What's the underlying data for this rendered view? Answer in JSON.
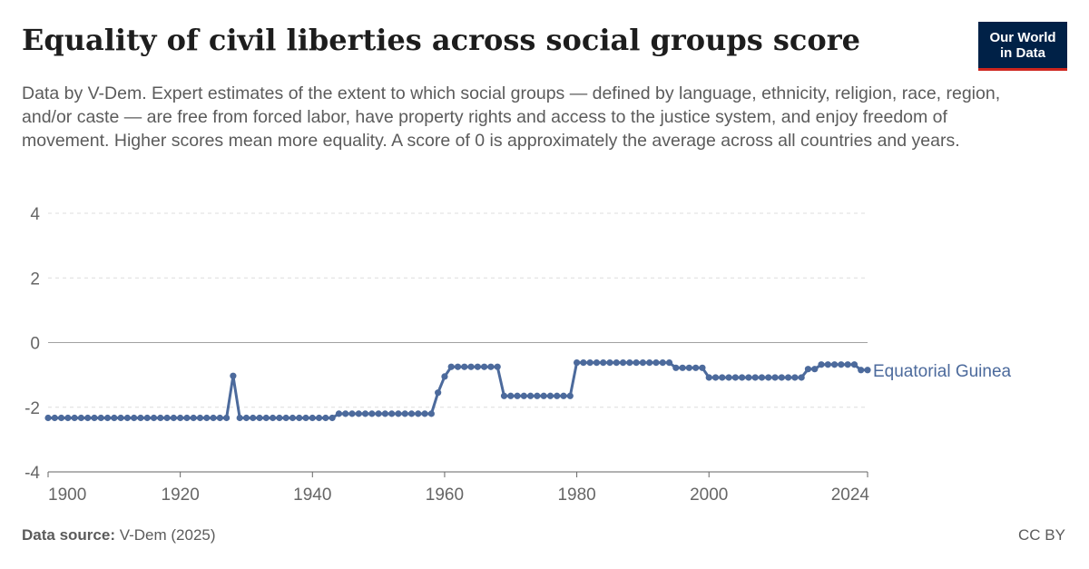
{
  "header": {
    "title": "Equality of civil liberties across social groups score",
    "subtitle": "Data by V-Dem. Expert estimates of the extent to which social groups — defined by language, ethnicity, religion, race, region, and/or caste — are free from forced labor, have property rights and access to the justice system, and enjoy freedom of movement. Higher scores mean more equality. A score of 0 is approximately the average across all countries and years."
  },
  "logo": {
    "line1": "Our World",
    "line2": "in Data",
    "background": "#002147",
    "accent": "#ce261e"
  },
  "footer": {
    "source_label": "Data source:",
    "source_value": "V-Dem (2025)",
    "license": "CC BY"
  },
  "chart_data": {
    "type": "line",
    "title": "Equality of civil liberties across social groups score",
    "xlabel": "",
    "ylabel": "",
    "xlim": [
      1900,
      2024
    ],
    "ylim": [
      -4,
      4
    ],
    "x_ticks": [
      1900,
      1920,
      1940,
      1960,
      1980,
      2000,
      2024
    ],
    "y_ticks": [
      4,
      2,
      0,
      -2,
      -4
    ],
    "y_tick_labels": [
      "4",
      "2",
      "0",
      "-2",
      "-4"
    ],
    "grid": "horizontal dashed",
    "legend": "inline label at line end",
    "series": [
      {
        "name": "Equatorial Guinea",
        "color": "#4c6a9c",
        "points": [
          [
            1900,
            -2.33
          ],
          [
            1901,
            -2.33
          ],
          [
            1902,
            -2.33
          ],
          [
            1903,
            -2.33
          ],
          [
            1904,
            -2.33
          ],
          [
            1905,
            -2.33
          ],
          [
            1906,
            -2.33
          ],
          [
            1907,
            -2.33
          ],
          [
            1908,
            -2.33
          ],
          [
            1909,
            -2.33
          ],
          [
            1910,
            -2.33
          ],
          [
            1911,
            -2.33
          ],
          [
            1912,
            -2.33
          ],
          [
            1913,
            -2.33
          ],
          [
            1914,
            -2.33
          ],
          [
            1915,
            -2.33
          ],
          [
            1916,
            -2.33
          ],
          [
            1917,
            -2.33
          ],
          [
            1918,
            -2.33
          ],
          [
            1919,
            -2.33
          ],
          [
            1920,
            -2.33
          ],
          [
            1921,
            -2.33
          ],
          [
            1922,
            -2.33
          ],
          [
            1923,
            -2.33
          ],
          [
            1924,
            -2.33
          ],
          [
            1925,
            -2.33
          ],
          [
            1926,
            -2.33
          ],
          [
            1927,
            -2.33
          ],
          [
            1928,
            -1.03
          ],
          [
            1929,
            -2.33
          ],
          [
            1930,
            -2.33
          ],
          [
            1931,
            -2.33
          ],
          [
            1932,
            -2.33
          ],
          [
            1933,
            -2.33
          ],
          [
            1934,
            -2.33
          ],
          [
            1935,
            -2.33
          ],
          [
            1936,
            -2.33
          ],
          [
            1937,
            -2.33
          ],
          [
            1938,
            -2.33
          ],
          [
            1939,
            -2.33
          ],
          [
            1940,
            -2.33
          ],
          [
            1941,
            -2.33
          ],
          [
            1942,
            -2.33
          ],
          [
            1943,
            -2.33
          ],
          [
            1944,
            -2.2
          ],
          [
            1945,
            -2.2
          ],
          [
            1946,
            -2.2
          ],
          [
            1947,
            -2.2
          ],
          [
            1948,
            -2.2
          ],
          [
            1949,
            -2.2
          ],
          [
            1950,
            -2.2
          ],
          [
            1951,
            -2.2
          ],
          [
            1952,
            -2.2
          ],
          [
            1953,
            -2.2
          ],
          [
            1954,
            -2.2
          ],
          [
            1955,
            -2.2
          ],
          [
            1956,
            -2.2
          ],
          [
            1957,
            -2.2
          ],
          [
            1958,
            -2.2
          ],
          [
            1959,
            -1.55
          ],
          [
            1960,
            -1.05
          ],
          [
            1961,
            -0.75
          ],
          [
            1962,
            -0.75
          ],
          [
            1963,
            -0.75
          ],
          [
            1964,
            -0.75
          ],
          [
            1965,
            -0.75
          ],
          [
            1966,
            -0.75
          ],
          [
            1967,
            -0.75
          ],
          [
            1968,
            -0.75
          ],
          [
            1969,
            -1.65
          ],
          [
            1970,
            -1.65
          ],
          [
            1971,
            -1.65
          ],
          [
            1972,
            -1.65
          ],
          [
            1973,
            -1.65
          ],
          [
            1974,
            -1.65
          ],
          [
            1975,
            -1.65
          ],
          [
            1976,
            -1.65
          ],
          [
            1977,
            -1.65
          ],
          [
            1978,
            -1.65
          ],
          [
            1979,
            -1.65
          ],
          [
            1980,
            -0.62
          ],
          [
            1981,
            -0.62
          ],
          [
            1982,
            -0.62
          ],
          [
            1983,
            -0.62
          ],
          [
            1984,
            -0.62
          ],
          [
            1985,
            -0.62
          ],
          [
            1986,
            -0.62
          ],
          [
            1987,
            -0.62
          ],
          [
            1988,
            -0.62
          ],
          [
            1989,
            -0.62
          ],
          [
            1990,
            -0.62
          ],
          [
            1991,
            -0.62
          ],
          [
            1992,
            -0.62
          ],
          [
            1993,
            -0.62
          ],
          [
            1994,
            -0.62
          ],
          [
            1995,
            -0.78
          ],
          [
            1996,
            -0.78
          ],
          [
            1997,
            -0.78
          ],
          [
            1998,
            -0.78
          ],
          [
            1999,
            -0.78
          ],
          [
            2000,
            -1.08
          ],
          [
            2001,
            -1.08
          ],
          [
            2002,
            -1.08
          ],
          [
            2003,
            -1.08
          ],
          [
            2004,
            -1.08
          ],
          [
            2005,
            -1.08
          ],
          [
            2006,
            -1.08
          ],
          [
            2007,
            -1.08
          ],
          [
            2008,
            -1.08
          ],
          [
            2009,
            -1.08
          ],
          [
            2010,
            -1.08
          ],
          [
            2011,
            -1.08
          ],
          [
            2012,
            -1.08
          ],
          [
            2013,
            -1.08
          ],
          [
            2014,
            -1.08
          ],
          [
            2015,
            -0.82
          ],
          [
            2016,
            -0.82
          ],
          [
            2017,
            -0.68
          ],
          [
            2018,
            -0.68
          ],
          [
            2019,
            -0.68
          ],
          [
            2020,
            -0.68
          ],
          [
            2021,
            -0.68
          ],
          [
            2022,
            -0.68
          ],
          [
            2023,
            -0.85
          ],
          [
            2024,
            -0.85
          ]
        ]
      }
    ]
  }
}
